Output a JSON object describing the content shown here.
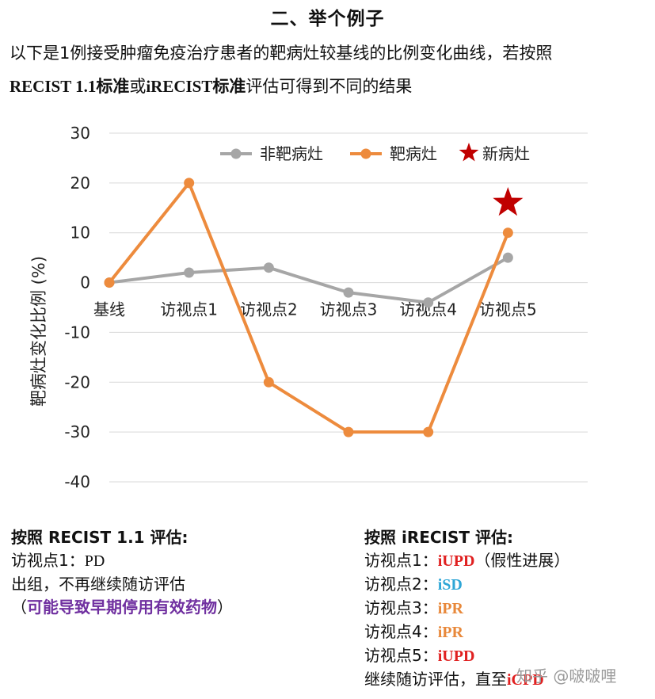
{
  "heading": "二、举个例子",
  "intro": {
    "line1": "以下是1例接受肿瘤免疫治疗患者的靶病灶较基线的比例变化曲线，若按照",
    "recist": "RECIST 1.1",
    "std1": "标准",
    "or": "或",
    "irecist": "iRECIST",
    "std2": "标准",
    "rest": "评估可得到不同的结果"
  },
  "chart_data": {
    "type": "line",
    "categories": [
      "基线",
      "访视点1",
      "访视点2",
      "访视点3",
      "访视点4",
      "访视点5"
    ],
    "series": [
      {
        "name": "非靶病灶",
        "color": "#a6a6a6",
        "values": [
          0,
          2,
          3,
          -2,
          -4,
          5
        ]
      },
      {
        "name": "靶病灶",
        "color": "#ed8b3d",
        "values": [
          0,
          20,
          -20,
          -30,
          -30,
          10
        ]
      }
    ],
    "new_lesion": {
      "name": "新病灶",
      "color": "#c00000",
      "category": "访视点5",
      "y": 16
    },
    "ylabel": "靶病灶变化比例 (%)",
    "ylim": [
      -40,
      30
    ],
    "yticks": [
      30,
      20,
      10,
      0,
      -10,
      -20,
      -30,
      -40
    ],
    "grid": true,
    "legend_position": "top-right"
  },
  "recist": {
    "title": "按照 RECIST 1.1 评估:",
    "visit1_label": "访视点1：",
    "visit1_value": "PD",
    "line2": "出组，不再继续随访评估",
    "paren_open": "（",
    "warning": "可能导致早期停用有效药物",
    "paren_close": "）"
  },
  "irecist": {
    "title": "按照 iRECIST 评估:",
    "visits": [
      {
        "label": "访视点1：",
        "value": "iUPD",
        "note": "（假性进展）",
        "color": "red"
      },
      {
        "label": "访视点2：",
        "value": "iSD",
        "note": "",
        "color": "blue"
      },
      {
        "label": "访视点3：",
        "value": "iPR",
        "note": "",
        "color": "orange"
      },
      {
        "label": "访视点4：",
        "value": "iPR",
        "note": "",
        "color": "orange"
      },
      {
        "label": "访视点5：",
        "value": "iUPD",
        "note": "",
        "color": "red"
      }
    ],
    "final_text": "继续随访评估，直至",
    "final_value": "iCPD"
  },
  "watermark": "知乎 @啵啵哩"
}
